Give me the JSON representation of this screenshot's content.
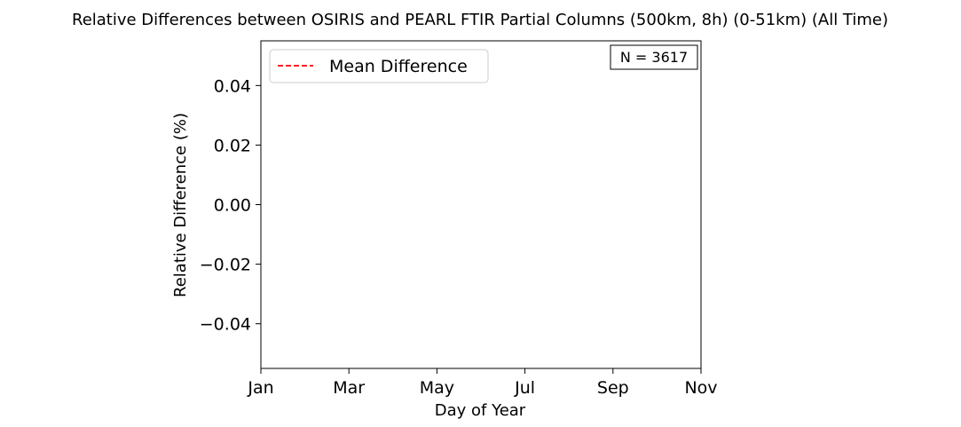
{
  "chart_data": {
    "type": "line",
    "title": "Relative Differences between OSIRIS and PEARL FTIR Partial Columns (500km, 8h) (0-51km) (All Time)",
    "xlabel": "Day of Year",
    "ylabel": "Relative Difference (%)",
    "x_ticks": [
      "Jan",
      "Mar",
      "May",
      "Jul",
      "Sep",
      "Nov"
    ],
    "y_ticks": [
      "0.04",
      "0.02",
      "0.00",
      "−0.02",
      "−0.04"
    ],
    "y_tick_values": [
      0.04,
      0.02,
      0.0,
      -0.02,
      -0.04
    ],
    "ylim": [
      -0.055,
      0.055
    ],
    "grid": false,
    "legend_position": "upper-left",
    "series": [
      {
        "name": "Mean Difference",
        "x": [],
        "y": [],
        "color": "#ff0000",
        "style": "dashed"
      }
    ],
    "annotation": "N = 3617"
  }
}
